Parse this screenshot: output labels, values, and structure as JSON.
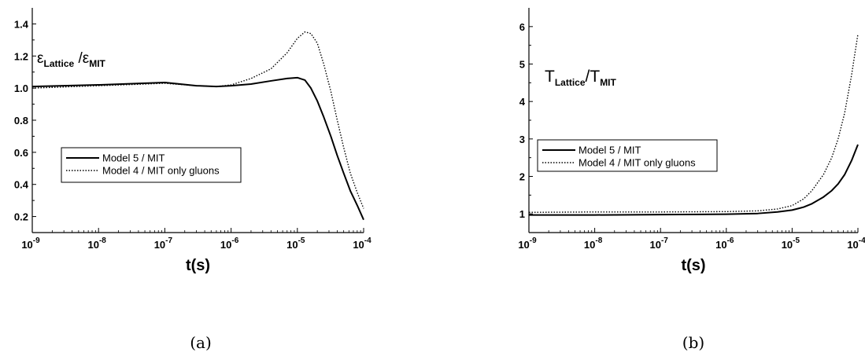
{
  "chart_data": [
    {
      "type": "line",
      "xlabel": "t(s)",
      "ylabel": "",
      "x_scale": "log",
      "xlim": [
        1e-09,
        0.0001
      ],
      "ylim": [
        0.1,
        1.5
      ],
      "x_ticks": [
        1e-09,
        1e-08,
        1e-07,
        1e-06,
        1e-05,
        0.0001
      ],
      "x_tick_exponents": [
        "-9",
        "-8",
        "-7",
        "-6",
        "-5",
        "-4"
      ],
      "y_ticks": [
        0.2,
        0.4,
        0.6,
        0.8,
        1.0,
        1.2,
        1.4
      ],
      "y_tick_labels": [
        "0.2",
        "0.4",
        "0.6",
        "0.8",
        "1.0",
        "1.2",
        "1.4"
      ],
      "annotation": {
        "num": "ε",
        "num_sub": "Lattice",
        "sep": " /",
        "den": "ε",
        "den_sub": "MIT"
      },
      "legend_placement": "center-left",
      "caption": "(a)",
      "series": [
        {
          "name": "Model 5 / MIT",
          "style": "solid",
          "x": [
            1e-09,
            1e-08,
            1e-07,
            3e-07,
            6e-07,
            1e-06,
            2e-06,
            4e-06,
            7e-06,
            1e-05,
            1.3e-05,
            1.6e-05,
            2e-05,
            2.5e-05,
            3.2e-05,
            4e-05,
            5e-05,
            6.3e-05,
            8e-05,
            0.0001
          ],
          "y": [
            1.01,
            1.02,
            1.035,
            1.015,
            1.01,
            1.015,
            1.025,
            1.045,
            1.06,
            1.065,
            1.05,
            1.0,
            0.92,
            0.82,
            0.7,
            0.58,
            0.47,
            0.36,
            0.27,
            0.18
          ]
        },
        {
          "name": "Model 4 / MIT only gluons",
          "style": "dotted",
          "x": [
            1e-09,
            1e-08,
            1e-07,
            3e-07,
            6e-07,
            1e-06,
            2e-06,
            4e-06,
            7e-06,
            1e-05,
            1.3e-05,
            1.6e-05,
            2e-05,
            2.5e-05,
            3.2e-05,
            4e-05,
            5e-05,
            6.3e-05,
            8e-05,
            0.0001
          ],
          "y": [
            1.0,
            1.015,
            1.03,
            1.015,
            1.01,
            1.02,
            1.06,
            1.12,
            1.22,
            1.31,
            1.35,
            1.34,
            1.28,
            1.15,
            0.98,
            0.8,
            0.63,
            0.47,
            0.35,
            0.25
          ]
        }
      ]
    },
    {
      "type": "line",
      "xlabel": "t(s)",
      "ylabel": "",
      "x_scale": "log",
      "xlim": [
        1e-09,
        0.0001
      ],
      "ylim": [
        0.5,
        6.5
      ],
      "x_ticks": [
        1e-09,
        1e-08,
        1e-07,
        1e-06,
        1e-05,
        0.0001
      ],
      "x_tick_exponents": [
        "-9",
        "-8",
        "-7",
        "-6",
        "-5",
        "-4"
      ],
      "y_ticks": [
        1,
        2,
        3,
        4,
        5,
        6
      ],
      "y_tick_labels": [
        "1",
        "2",
        "3",
        "4",
        "5",
        "6"
      ],
      "annotation": {
        "num": "T",
        "num_sub": "Lattice",
        "sep": "/",
        "den": "T",
        "den_sub": "MIT"
      },
      "legend_placement": "center-left",
      "caption": "(b)",
      "series": [
        {
          "name": "Model 5 / MIT",
          "style": "solid",
          "x": [
            1e-09,
            1e-08,
            1e-07,
            1e-06,
            3e-06,
            6e-06,
            1e-05,
            1.5e-05,
            2e-05,
            3e-05,
            4e-05,
            5e-05,
            6.3e-05,
            8e-05,
            0.0001
          ],
          "y": [
            0.97,
            0.97,
            0.98,
            0.99,
            1.01,
            1.05,
            1.1,
            1.18,
            1.27,
            1.45,
            1.62,
            1.8,
            2.05,
            2.42,
            2.85
          ]
        },
        {
          "name": "Model 4 / MIT only gluons",
          "style": "dotted",
          "x": [
            1e-09,
            1e-08,
            1e-07,
            1e-06,
            3e-06,
            6e-06,
            1e-05,
            1.5e-05,
            2e-05,
            3e-05,
            4e-05,
            5e-05,
            6.3e-05,
            8e-05,
            0.0001
          ],
          "y": [
            1.04,
            1.05,
            1.05,
            1.06,
            1.08,
            1.13,
            1.22,
            1.4,
            1.62,
            2.05,
            2.5,
            3.0,
            3.7,
            4.7,
            5.8
          ]
        }
      ]
    }
  ]
}
